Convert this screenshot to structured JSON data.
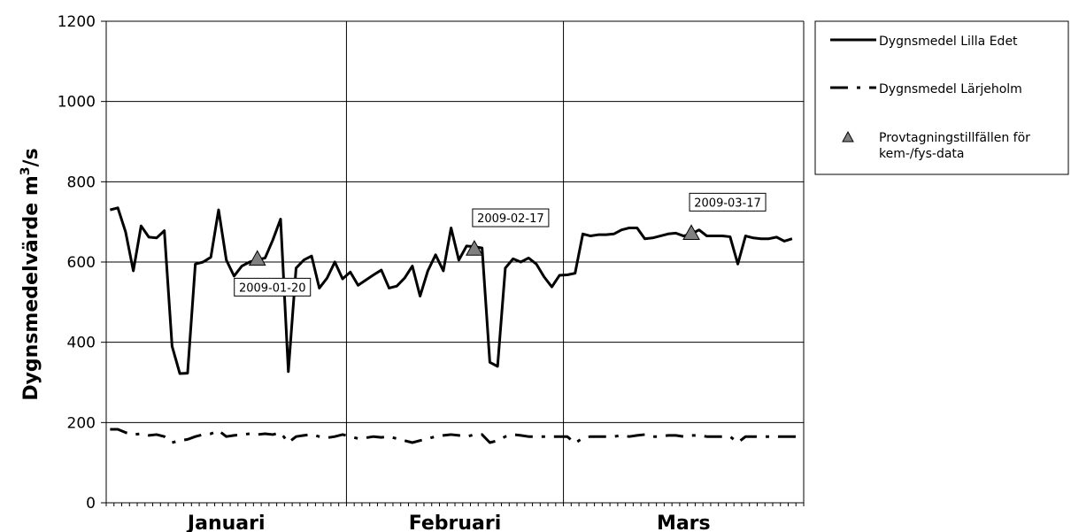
{
  "chart_data": {
    "type": "line",
    "ylabel": "Dygnsmedelvärde m",
    "ylabel_sup": "3",
    "ylabel_tail": "/s",
    "xlabel": "",
    "ylim": [
      0,
      1200
    ],
    "yticks": [
      "0",
      "200",
      "400",
      "600",
      "800",
      "1000",
      "1200"
    ],
    "grid": true,
    "legend_position": "right",
    "months": [
      {
        "name": "Januari",
        "days": 31
      },
      {
        "name": "Februari",
        "days": 28
      },
      {
        "name": "Mars",
        "days": 31
      }
    ],
    "series": [
      {
        "name": "Dygnsmedel Lilla Edet",
        "color": "#000000",
        "style": "solid",
        "values": [
          730,
          735,
          675,
          578,
          690,
          662,
          660,
          678,
          390,
          322,
          323,
          595,
          600,
          612,
          730,
          605,
          565,
          590,
          600,
          605,
          610,
          655,
          707,
          327,
          585,
          605,
          615,
          535,
          560,
          600,
          558,
          575,
          542,
          555,
          568,
          580,
          535,
          540,
          560,
          590,
          515,
          578,
          618,
          578,
          685,
          605,
          640,
          638,
          635,
          350,
          340,
          585,
          608,
          600,
          610,
          595,
          563,
          538,
          567,
          568,
          572,
          670,
          665,
          668,
          668,
          670,
          680,
          685,
          685,
          658,
          660,
          665,
          670,
          672,
          665,
          670,
          680,
          665,
          665,
          665,
          663,
          595,
          665,
          660,
          658,
          658,
          662,
          652,
          658
        ],
        "x_start": 1
      },
      {
        "name": "Dygnsmedel Lärjeholm",
        "color": "#000000",
        "style": "dashed",
        "values": [
          183,
          183,
          175,
          170,
          172,
          168,
          170,
          165,
          150,
          155,
          158,
          165,
          170,
          172,
          180,
          165,
          168,
          170,
          172,
          170,
          172,
          170,
          175,
          150,
          165,
          168,
          170,
          165,
          162,
          165,
          170,
          165,
          160,
          162,
          165,
          163,
          165,
          160,
          155,
          150,
          155,
          160,
          165,
          168,
          170,
          168,
          165,
          170,
          170,
          150,
          155,
          165,
          170,
          168,
          165,
          165,
          165,
          165,
          165,
          165,
          148,
          162,
          165,
          165,
          165,
          165,
          168,
          165,
          168,
          170,
          165,
          165,
          168,
          168,
          165,
          168,
          168,
          165,
          165,
          165,
          165,
          150,
          165,
          165,
          165,
          165,
          165,
          165,
          165,
          165
        ],
        "x_start": 1
      }
    ],
    "markers": {
      "name": "Provtagningstillfällen för kem-/fys-data",
      "legend_line1": "Provtagningstillfällen för",
      "legend_line2": "kem-/fys-data",
      "color": "#808080",
      "points": [
        {
          "day": 20,
          "value": 608,
          "label": "2009-01-20",
          "label_side": "below"
        },
        {
          "day": 48,
          "value": 633,
          "label": "2009-02-17",
          "label_side": "above"
        },
        {
          "day": 76,
          "value": 672,
          "label": "2009-03-17",
          "label_side": "above"
        }
      ]
    }
  }
}
